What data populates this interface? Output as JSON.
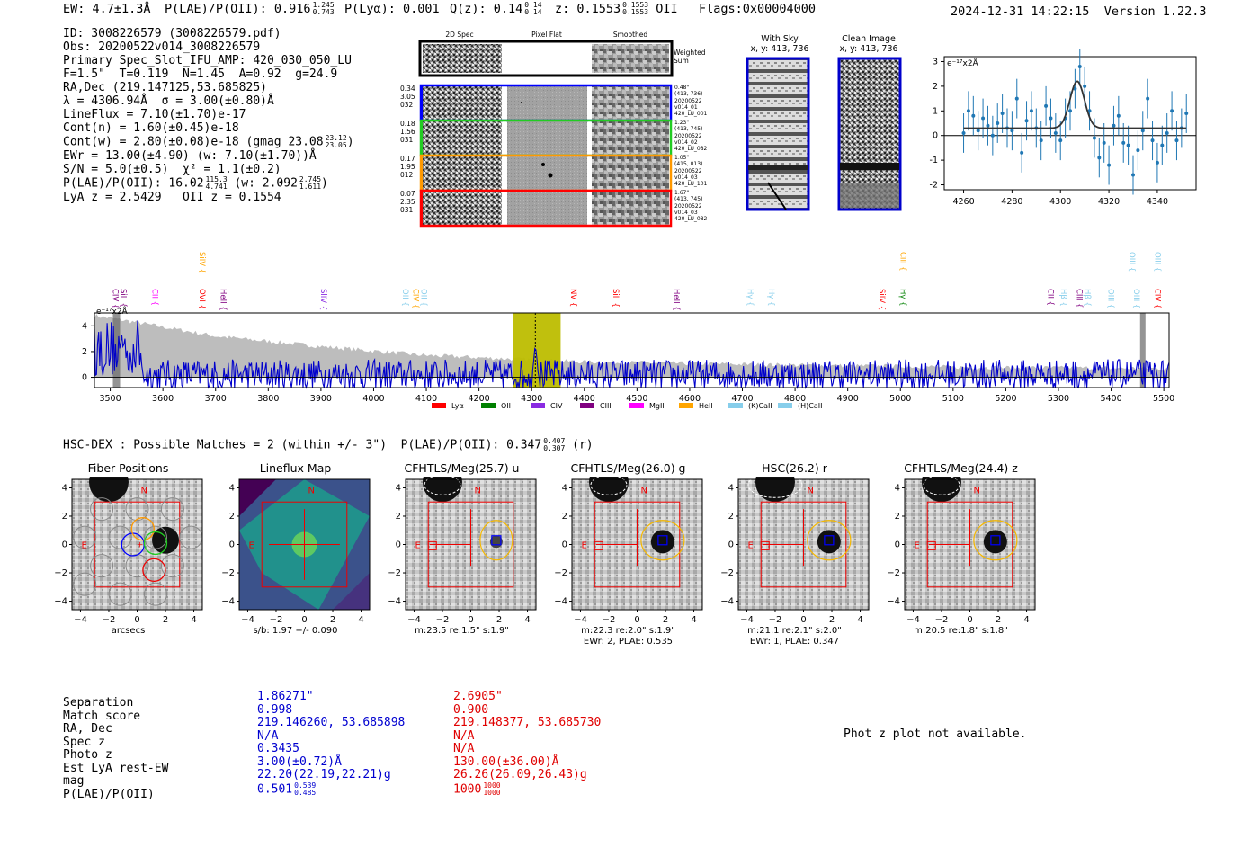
{
  "header": {
    "ew": "EW: 4.7±1.3Å",
    "plae_label": "P(LAE)/P(OII): 0.916",
    "plae_hi": "1.245",
    "plae_lo": "0.743",
    "plya": "P(Lyα): 0.001",
    "qz_label": "Q(z): 0.14",
    "qz_hi": "0.14",
    "qz_lo": "0.14",
    "z_label": "z: 0.1553",
    "z_hi": "0.1553",
    "z_lo": "0.1553",
    "z_line": "OII",
    "flags": "Flags:0x00004000",
    "timestamp": "2024-12-31 14:22:15",
    "version": "Version 1.22.3"
  },
  "info": {
    "id": "ID: 3008226579 (3008226579.pdf)",
    "obs": "Obs: 20200522v014_3008226579",
    "slot": "Primary Spec_Slot_IFU_AMP: 420_030_050_LU",
    "params": "F=1.5\"  T=0.119  N=1.45  A=0.92  g=24.9",
    "radec": "RA,Dec (219.147125,53.685825)",
    "lambda": "λ = 4306.94Å  σ = 3.00(±0.80)Å",
    "lineflux": "LineFlux = 7.10(±1.70)e-17",
    "contn": "Cont(n) = 1.60(±0.45)e-18",
    "contw": "Cont(w) = 2.80(±0.08)e-18 (gmag 23.08",
    "contw_hi": "23.12",
    "contw_lo": "23.05",
    "contw_end": ")",
    "ewr": "EWr = 13.00(±4.90) (w: 7.10(±1.70))Å",
    "sn": "S/N = 5.0(±0.5)  χ² = 1.1(±0.2)",
    "plae": "P(LAE)/P(OII): 16.02",
    "plae_hi": "115.3",
    "plae_lo": "4.741",
    "plae_w": "(w: 2.092",
    "plae_w_hi": "2.745",
    "plae_w_lo": "1.611",
    "plae_end": ")",
    "lyaz": "LyA z = 2.5429   OII z = 0.1554"
  },
  "spec2d": {
    "col_titles": [
      "2D Spec",
      "Pixel Flat",
      "Smoothed"
    ],
    "weighted_sum": "Weighted Sum",
    "rows": [
      {
        "left": [
          "0.34",
          "3.05",
          "032"
        ],
        "right": [
          "0.48\"",
          "(413, 736)",
          "20200522",
          "v014_01",
          "420_LU_001"
        ],
        "color": "#0000ff"
      },
      {
        "left": [
          "0.18",
          "1.56",
          "031"
        ],
        "right": [
          "1.23\"",
          "(413, 745)",
          "20200522",
          "v014_02",
          "420_LU_082"
        ],
        "color": "#22cc22"
      },
      {
        "left": [
          "0.17",
          "1.95",
          "012"
        ],
        "right": [
          "1.05\"",
          "(415, 013)",
          "20200522",
          "v014_03",
          "420_LU_101"
        ],
        "color": "#ff9900"
      },
      {
        "left": [
          "0.07",
          "2.35",
          "031"
        ],
        "right": [
          "1.67\"",
          "(413, 745)",
          "20200522",
          "v014_03",
          "420_LU_082"
        ],
        "color": "#ff0000"
      }
    ]
  },
  "cutouts": {
    "with_sky": "With Sky",
    "with_sky_xy": "x, y: 413, 736",
    "clean": "Clean Image",
    "clean_xy": "x, y: 413, 736"
  },
  "zoom_plot": {
    "unit_label": "e⁻¹⁷x2Å",
    "xticks": [
      4260,
      4280,
      4300,
      4320,
      4340
    ],
    "yticks": [
      -2,
      -1,
      0,
      1,
      2,
      3
    ]
  },
  "full_spec": {
    "unit_label": "e⁻¹⁷x2Å",
    "xticks": [
      3500,
      3600,
      3700,
      3800,
      3900,
      4000,
      4100,
      4200,
      4300,
      4400,
      4500,
      4600,
      4700,
      4800,
      4900,
      5000,
      5100,
      5200,
      5300,
      5400,
      5500
    ],
    "yticks": [
      0,
      2,
      4
    ],
    "legend": [
      {
        "label": "Lyα",
        "color": "#ff0000"
      },
      {
        "label": "OII",
        "color": "#008000"
      },
      {
        "label": "CIV",
        "color": "#8a2be2"
      },
      {
        "label": "CIII",
        "color": "#800080"
      },
      {
        "label": "MgII",
        "color": "#ff00ff"
      },
      {
        "label": "HeII",
        "color": "#ffa500"
      },
      {
        "label": "(K)CaII",
        "color": "#87ceeb"
      },
      {
        "label": "(H)CaII",
        "color": "#87ceeb"
      }
    ],
    "lines": [
      {
        "label": "CIV",
        "wl": 3500,
        "color": "#800080",
        "row": 1
      },
      {
        "label": "SiII",
        "wl": 3515,
        "color": "#800080",
        "row": 1
      },
      {
        "label": "CII",
        "wl": 3575,
        "color": "#ff00ff",
        "row": 1
      },
      {
        "label": "SiIV",
        "wl": 3665,
        "color": "#ffa500",
        "row": 0
      },
      {
        "label": "OVI",
        "wl": 3665,
        "color": "#ff0000",
        "row": 1
      },
      {
        "label": "HeII",
        "wl": 3705,
        "color": "#800080",
        "row": 1
      },
      {
        "label": "SiIV",
        "wl": 3895,
        "color": "#8a2be2",
        "row": 1
      },
      {
        "label": "OII",
        "wl": 4050,
        "color": "#87ceeb",
        "row": 1
      },
      {
        "label": "CIV",
        "wl": 4070,
        "color": "#ffa500",
        "row": 1
      },
      {
        "label": "OII",
        "wl": 4085,
        "color": "#87ceeb",
        "row": 1
      },
      {
        "label": "NV",
        "wl": 4370,
        "color": "#ff0000",
        "row": 1
      },
      {
        "label": "SiII",
        "wl": 4450,
        "color": "#ff0000",
        "row": 1
      },
      {
        "label": "HeII",
        "wl": 4565,
        "color": "#800080",
        "row": 1
      },
      {
        "label": "Hγ",
        "wl": 4705,
        "color": "#87ceeb",
        "row": 1
      },
      {
        "label": "Hγ",
        "wl": 4745,
        "color": "#87ceeb",
        "row": 1
      },
      {
        "label": "SiIV",
        "wl": 4955,
        "color": "#ff0000",
        "row": 1
      },
      {
        "label": "CIII",
        "wl": 4995,
        "color": "#ffa500",
        "row": 0
      },
      {
        "label": "Hγ",
        "wl": 4995,
        "color": "#008000",
        "row": 1
      },
      {
        "label": "CII",
        "wl": 5275,
        "color": "#800080",
        "row": 1
      },
      {
        "label": "Hβ",
        "wl": 5300,
        "color": "#87ceeb",
        "row": 1
      },
      {
        "label": "CIII",
        "wl": 5330,
        "color": "#800080",
        "row": 1
      },
      {
        "label": "Hβ",
        "wl": 5345,
        "color": "#87ceeb",
        "row": 1
      },
      {
        "label": "OIII",
        "wl": 5390,
        "color": "#87ceeb",
        "row": 1
      },
      {
        "label": "OIII",
        "wl": 5430,
        "color": "#87ceeb",
        "row": 0
      },
      {
        "label": "OIII",
        "wl": 5438,
        "color": "#87ceeb",
        "row": 1
      },
      {
        "label": "OIII",
        "wl": 5478,
        "color": "#87ceeb",
        "row": 0
      },
      {
        "label": "CIV",
        "wl": 5478,
        "color": "#ff0000",
        "row": 1
      }
    ]
  },
  "hsc": {
    "title": "HSC-DEX : Possible Matches = 2 (within +/- 3\")  P(LAE)/P(OII): 0.347",
    "plae_hi": "0.407",
    "plae_lo": "0.307",
    "band": "(r)"
  },
  "cutout_panels": [
    {
      "title": "Fiber Positions",
      "cap1": "arcsecs",
      "cap2": ""
    },
    {
      "title": "Lineflux Map",
      "cap1": "s/b: 1.97 +/- 0.090",
      "cap2": ""
    },
    {
      "title": "CFHTLS/Meg(25.7) u",
      "cap1": "m:23.5  re:1.5\"  s:1.9\"",
      "cap2": ""
    },
    {
      "title": "CFHTLS/Meg(26.0) g",
      "cap1": "m:22.3  re:2.0\"  s:1.9\"",
      "cap2": "EWr: 2, PLAE: 0.535"
    },
    {
      "title": "HSC(26.2) r",
      "cap1": "m:21.1  re:2.1\"  s:2.0\"",
      "cap2": "EWr: 1, PLAE: 0.347"
    },
    {
      "title": "CFHTLS/Meg(24.4) z",
      "cap1": "m:20.5  re:1.8\"  s:1.8\"",
      "cap2": ""
    }
  ],
  "cutout_axis": {
    "ticks": [
      -4,
      -2,
      0,
      2,
      4
    ],
    "north": "N",
    "east": "E"
  },
  "match_table": {
    "labels": [
      "Separation",
      "Match score",
      "RA, Dec",
      "Spec z",
      "Photo z",
      "Est LyA rest-EW",
      "mag",
      "P(LAE)/P(OII)"
    ],
    "blue": [
      "1.86271\"",
      "0.998",
      "219.146260, 53.685898",
      "N/A",
      "0.3435",
      "3.00(±0.72)Å",
      "22.20(22.19,22.21)g",
      "0.501"
    ],
    "blue_plae_hi": "0.539",
    "blue_plae_lo": "0.485",
    "red": [
      "2.6905\"",
      "0.900",
      "219.148377, 53.685730",
      "N/A",
      "N/A",
      "130.00(±36.00)Å",
      "26.26(26.09,26.43)g",
      "1000"
    ],
    "red_plae_hi": "1000",
    "red_plae_lo": "1000"
  },
  "photz_note": "Phot z plot not available.",
  "chart_data": [
    {
      "type": "scatter",
      "title": "",
      "xlabel": "",
      "ylabel": "e⁻¹⁷x2Å",
      "xlim": [
        4252,
        4356
      ],
      "ylim": [
        -2.2,
        3.2
      ],
      "series": [
        {
          "name": "data",
          "x": [
            4260,
            4262,
            4264,
            4266,
            4268,
            4270,
            4272,
            4274,
            4276,
            4278,
            4280,
            4282,
            4284,
            4286,
            4288,
            4290,
            4292,
            4294,
            4296,
            4298,
            4300,
            4302,
            4304,
            4306,
            4308,
            4310,
            4312,
            4314,
            4316,
            4318,
            4320,
            4322,
            4324,
            4326,
            4328,
            4330,
            4332,
            4334,
            4336,
            4338,
            4340,
            4342,
            4344,
            4346,
            4348,
            4350,
            4352
          ],
          "y": [
            0.1,
            1.0,
            0.8,
            0.2,
            0.7,
            0.4,
            0.0,
            0.5,
            0.9,
            0.3,
            0.2,
            1.5,
            -0.7,
            0.6,
            1.0,
            0.3,
            -0.2,
            1.2,
            0.7,
            0.1,
            -0.2,
            0.7,
            1.0,
            1.9,
            2.8,
            2.0,
            1.0,
            -0.1,
            -0.9,
            -0.3,
            -1.2,
            0.4,
            0.8,
            -0.3,
            -0.4,
            -1.6,
            -0.6,
            0.2,
            1.5,
            -0.2,
            -1.1,
            -0.4,
            0.1,
            1.0,
            -0.2,
            0.3,
            0.9
          ],
          "err": 0.8
        },
        {
          "name": "gaussian fit",
          "model": "gaussian",
          "center": 4306.9,
          "sigma": 3.0,
          "amplitude": 1.9,
          "baseline": 0.3
        }
      ]
    },
    {
      "type": "line",
      "title": "",
      "xlabel": "",
      "ylabel": "e⁻¹⁷x2Å",
      "xlim": [
        3470,
        5510
      ],
      "ylim": [
        -0.8,
        5.0
      ],
      "highlight_band": [
        4265,
        4355
      ],
      "marker_line": 4307,
      "series": [
        {
          "name": "flux",
          "color": "#0000cc",
          "x_start": 3470,
          "x_end": 5510,
          "step": 2,
          "noise_amp": 1.2
        },
        {
          "name": "error",
          "color": "#bbbbbb",
          "envelope": [
            [
              3470,
              4.8
            ],
            [
              3560,
              4.2
            ],
            [
              3700,
              3.2
            ],
            [
              3900,
              2.4
            ],
            [
              4100,
              1.7
            ],
            [
              4400,
              1.2
            ],
            [
              4800,
              0.95
            ],
            [
              5200,
              0.75
            ],
            [
              5510,
              0.7
            ]
          ]
        }
      ],
      "peaks": [
        [
          4307,
          2.4
        ]
      ]
    }
  ]
}
